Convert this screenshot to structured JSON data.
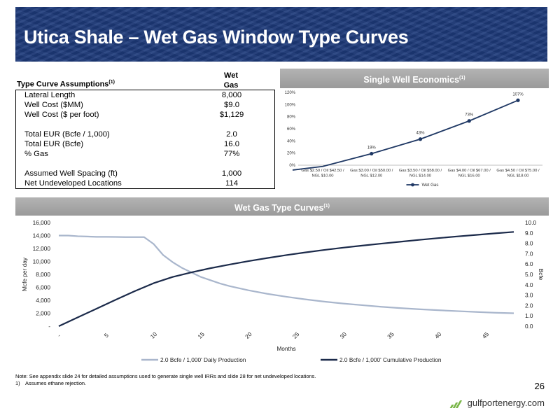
{
  "title": "Utica Shale – Wet Gas Window Type Curves",
  "assumptions": {
    "header_label": "Type Curve Assumptions",
    "header_sup": "(1)",
    "column_header_line1": "Wet",
    "column_header_line2": "Gas",
    "rows": [
      {
        "label": "Lateral Length",
        "value": "8,000"
      },
      {
        "label": "Well Cost ($MM)",
        "value": "$9.0"
      },
      {
        "label": "Well Cost ($ per foot)",
        "value": "$1,129"
      },
      {
        "label": "Total EUR (Bcfe / 1,000)",
        "value": "2.0"
      },
      {
        "label": "Total EUR (Bcfe)",
        "value": "16.0"
      },
      {
        "label": "% Gas",
        "value": "77%"
      },
      {
        "label": "Assumed Well Spacing (ft)",
        "value": "1,000"
      },
      {
        "label": "Net Undeveloped Locations",
        "value": "114"
      }
    ]
  },
  "economics": {
    "title": "Single Well Economics",
    "title_sup": "(1)"
  },
  "type_curves": {
    "title": "Wet Gas Type Curves",
    "title_sup": "(1)"
  },
  "chart_data": [
    {
      "type": "line",
      "title": "Single Well Economics",
      "categories": [
        [
          "Gas $2.50 / Oil $42.50 /",
          "NGL $10.00"
        ],
        [
          "Gas $3.00 / Oil $50.00 /",
          "NGL $12.00"
        ],
        [
          "Gas $3.50 / Oil $58.00 /",
          "NGL $14.00"
        ],
        [
          "Gas $4.00 / Oil $67.00 /",
          "NGL $16.00"
        ],
        [
          "Gas $4.50 / Oil $75.00 /",
          "NGL $18.00"
        ]
      ],
      "series": [
        {
          "name": "Wet Gas",
          "values": [
            -2,
            19,
            43,
            73,
            107
          ],
          "data_labels": [
            "",
            "19%",
            "43%",
            "73%",
            "107%"
          ],
          "color": "#1f3864"
        }
      ],
      "ylim": [
        0,
        120
      ],
      "yticks": [
        "0%",
        "20%",
        "40%",
        "60%",
        "80%",
        "100%",
        "120%"
      ],
      "grid": false,
      "legend": "bottom"
    },
    {
      "type": "line",
      "xlabel": "Months",
      "ylabel": "Mcfe per day",
      "y2label": "Bcfe",
      "xticks": [
        "-",
        "5",
        "10",
        "15",
        "20",
        "25",
        "30",
        "35",
        "40",
        "45"
      ],
      "xlim": [
        0,
        48
      ],
      "ylim": [
        0,
        16000
      ],
      "y2lim": [
        0,
        10
      ],
      "yticks": [
        "-",
        "2,000",
        "4,000",
        "6,000",
        "8,000",
        "10,000",
        "12,000",
        "14,000",
        "16,000"
      ],
      "y2ticks": [
        "0.0",
        "1.0",
        "2.0",
        "3.0",
        "4.0",
        "5.0",
        "6.0",
        "7.0",
        "8.0",
        "9.0",
        "10.0"
      ],
      "grid": false,
      "legend": "bottom",
      "series": [
        {
          "name": "2.0 Bcfe / 1,000' Daily Production",
          "axis": "left",
          "color": "#a9b6cc",
          "x": [
            0,
            1,
            2,
            3,
            4,
            5,
            6,
            7,
            8,
            9,
            10,
            11,
            12,
            13,
            14,
            15,
            16,
            17,
            18,
            20,
            22,
            24,
            26,
            28,
            30,
            32,
            34,
            36,
            38,
            40,
            42,
            44,
            46,
            48
          ],
          "y": [
            14000,
            14000,
            13900,
            13850,
            13800,
            13800,
            13780,
            13760,
            13760,
            13760,
            12700,
            11000,
            9900,
            9000,
            8300,
            7600,
            7100,
            6600,
            6200,
            5550,
            5000,
            4550,
            4150,
            3800,
            3500,
            3250,
            3000,
            2800,
            2620,
            2470,
            2330,
            2200,
            2080,
            2000
          ]
        },
        {
          "name": "2.0 Bcfe / 1,000' Cumulative Production",
          "axis": "right",
          "color": "#1b2a4a",
          "x": [
            0,
            2,
            4,
            6,
            8,
            10,
            12,
            14,
            16,
            18,
            20,
            22,
            24,
            26,
            28,
            30,
            32,
            34,
            36,
            38,
            40,
            42,
            44,
            46,
            48
          ],
          "y": [
            0,
            0.85,
            1.7,
            2.55,
            3.38,
            4.15,
            4.75,
            5.2,
            5.6,
            5.95,
            6.28,
            6.58,
            6.86,
            7.12,
            7.36,
            7.58,
            7.78,
            7.97,
            8.15,
            8.33,
            8.5,
            8.66,
            8.81,
            8.96,
            9.1
          ]
        }
      ]
    }
  ],
  "footer": {
    "note": "Note: See appendix slide 24 for detailed assumptions used to generate single well IRRs and slide 28 for net undeveloped locations.",
    "footnote_num": "1)",
    "footnote_text": "Assumes ethane rejection.",
    "page_number": "26",
    "logo_text": "gulfportenergy.com"
  }
}
